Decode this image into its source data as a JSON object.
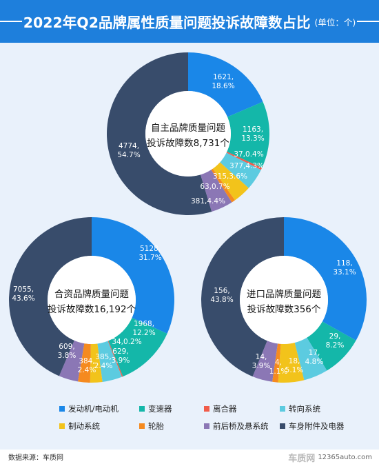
{
  "header": {
    "title": "2022年Q2品牌属性质量问题投诉故障数占比",
    "unit": "(单位：个)"
  },
  "legend": [
    {
      "label": "发动机/电动机",
      "color": "#1a87e8"
    },
    {
      "label": "变速器",
      "color": "#14b7a9"
    },
    {
      "label": "离合器",
      "color": "#f15c4a"
    },
    {
      "label": "转向系统",
      "color": "#5ccbe0"
    },
    {
      "label": "制动系统",
      "color": "#f2c31b"
    },
    {
      "label": "轮胎",
      "color": "#f58a1f"
    },
    {
      "label": "前后桥及悬系统",
      "color": "#8b77b5"
    },
    {
      "label": "车身附件及电器",
      "color": "#384c6b"
    }
  ],
  "chart_data": [
    {
      "type": "pie",
      "center_title": [
        "自主品牌质量问题",
        "投诉故障数8,731个"
      ],
      "categories": [
        "发动机/电动机",
        "变速器",
        "离合器",
        "转向系统",
        "制动系统",
        "轮胎",
        "前后桥及悬系统",
        "车身附件及电器"
      ],
      "values": [
        1621,
        1163,
        37,
        377,
        315,
        63,
        381,
        4774
      ],
      "labels": [
        [
          "1621,",
          "18.6%"
        ],
        [
          "1163,",
          "13.3%"
        ],
        [
          "37,0.4%"
        ],
        [
          "377,4.3%"
        ],
        [
          "315,3.6%"
        ],
        [
          "63,0.7%"
        ],
        [
          "381,4.4%"
        ],
        [
          "4774,",
          "54.7%"
        ]
      ]
    },
    {
      "type": "pie",
      "center_title": [
        "合资品牌质量问题",
        "投诉故障数16,192个"
      ],
      "categories": [
        "发动机/电动机",
        "变速器",
        "离合器",
        "转向系统",
        "制动系统",
        "轮胎",
        "前后桥及悬系统",
        "车身附件及电器"
      ],
      "values": [
        5128,
        1968,
        34,
        629,
        385,
        384,
        609,
        7055
      ],
      "labels": [
        [
          "5128,",
          "31.7%"
        ],
        [
          "1968,",
          "12.2%"
        ],
        [
          "34,0.2%"
        ],
        [
          "629,",
          "3.9%"
        ],
        [
          "385,",
          "2.4%"
        ],
        [
          "384,",
          "2.4%"
        ],
        [
          "609,",
          "3.8%"
        ],
        [
          "7055,",
          "43.6%"
        ]
      ]
    },
    {
      "type": "pie",
      "center_title": [
        "进口品牌质量问题",
        "投诉故障数356个"
      ],
      "categories": [
        "发动机/电动机",
        "变速器",
        "离合器",
        "转向系统",
        "制动系统",
        "轮胎",
        "前后桥及悬系统",
        "车身附件及电器"
      ],
      "values": [
        118,
        29,
        0,
        17,
        18,
        4,
        14,
        156
      ],
      "labels": [
        [
          "118,",
          "33.1%"
        ],
        [
          "29,",
          "8.2%"
        ],
        [],
        [
          "17,",
          "4.8%"
        ],
        [
          "18,",
          "5.1%"
        ],
        [
          "4,",
          "1.1%"
        ],
        [
          "14,",
          "3.9%"
        ],
        [
          "156,",
          "43.8%"
        ]
      ]
    }
  ],
  "footer": {
    "source": "数据来源：车质网",
    "brand_logo": "车质网",
    "brand_url": "12365auto.com"
  }
}
